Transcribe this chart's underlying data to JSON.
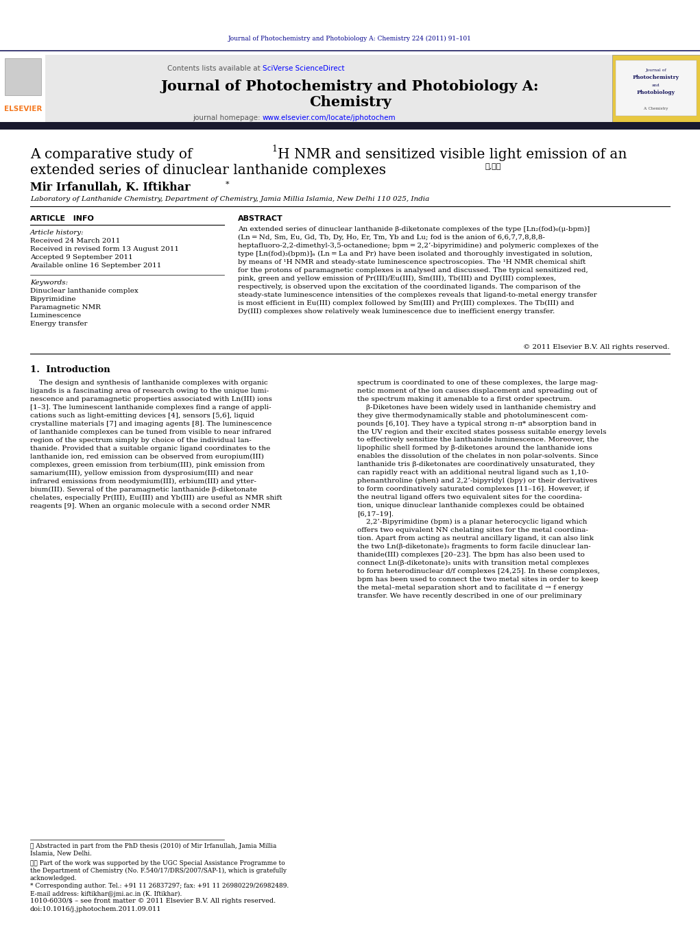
{
  "page_width": 10.21,
  "page_height": 13.51,
  "background_color": "#ffffff",
  "journal_citation": "Journal of Photochemistry and Photobiology A: Chemistry 224 (2011) 91–101",
  "journal_citation_color": "#00008B",
  "sciverse_color": "#0000FF",
  "homepage_url": "www.elsevier.com/locate/jphotochem",
  "homepage_url_color": "#0000FF",
  "journal_title_line1": "Journal of Photochemistry and Photobiology A:",
  "journal_title_line2": "Chemistry",
  "affiliation": "Laboratory of Lanthanide Chemistry, Department of Chemistry, Jamia Millia Islamia, New Delhi 110 025, India",
  "received": "Received 24 March 2011",
  "received_revised": "Received in revised form 13 August 2011",
  "accepted": "Accepted 9 September 2011",
  "available": "Available online 16 September 2011",
  "keyword1": "Dinuclear lanthanide complex",
  "keyword2": "Bipyrimidine",
  "keyword3": "Paramagnetic NMR",
  "keyword4": "Luminescence",
  "keyword5": "Energy transfer",
  "abstract_text": "An extended series of dinuclear lanthanide β-diketonate complexes of the type [Ln₂(fod)₆(μ-bpm)] (Ln = Nd, Sm, Eu, Gd, Tb, Dy, Ho, Er, Tm, Yb and Lu; fod is the anion of 6,6,7,7,8,8,8-heptafluoro-2,2-dimethyl-3,5-octanedione; bpm = 2,2’-bipyrimidine) and polymeric complexes of the type [Ln(fod)₃(bpm)]ₙ (Ln = La and Pr) have been isolated and thoroughly investigated in solution, by means of ¹H NMR and steady-state luminescence spectroscopies. The ¹H NMR chemical shift for the protons of paramagnetic complexes is analysed and discussed. The typical sensitized red, pink, green and yellow emission of Pr(III)/Eu(III), Sm(III), Tb(III) and Dy(III) complexes, respectively, is observed upon the excitation of the coordinated ligands. The comparison of the steady-state luminescence intensities of the complexes reveals that ligand-to-metal energy transfer is most efficient in Eu(III) complex followed by Sm(III) and Pr(III) complexes. The Tb(III) and Dy(III) complexes show relatively weak luminescence due to inefficient energy transfer.",
  "copyright": "© 2011 Elsevier B.V. All rights reserved.",
  "footnote1": "★ Abstracted in part from the PhD thesis (2010) of Mir Irfanullah, Jamia Millia\nIslamia, New Delhi.",
  "footnote2": "★★ Part of the work was supported by the UGC Special Assistance Programme to\nthe Department of Chemistry (No. F.540/17/DRS/2007/SAP-1), which is gratefully\nacknowledged.",
  "footnote3": "* Corresponding author. Tel.: +91 11 26837297; fax: +91 11 26980229/26982489.",
  "footnote4": "E-mail address: kiftikhar@jmi.ac.in (K. Iftikhar).",
  "issn_line": "1010-6030/$ – see front matter © 2011 Elsevier B.V. All rights reserved.",
  "doi_line": "doi:10.1016/j.jphotochem.2011.09.011",
  "elsevier_orange": "#F47920",
  "link_blue": "#0000CD"
}
